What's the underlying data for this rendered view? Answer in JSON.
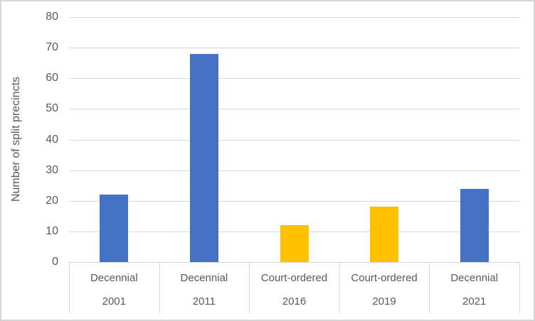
{
  "chart_data": {
    "type": "bar",
    "title": "",
    "xlabel": "",
    "ylabel": "Number of split precincts",
    "ylim": [
      0,
      80
    ],
    "ytick_step": 10,
    "yticks": [
      0,
      10,
      20,
      30,
      40,
      50,
      60,
      70,
      80
    ],
    "grid": "horizontal gridlines on, light gray",
    "legend": "none",
    "categories": [
      {
        "type_label": "Decennial",
        "year": "2001"
      },
      {
        "type_label": "Decennial",
        "year": "2011"
      },
      {
        "type_label": "Court-ordered",
        "year": "2016"
      },
      {
        "type_label": "Court-ordered",
        "year": "2019"
      },
      {
        "type_label": "Decennial",
        "year": "2021"
      }
    ],
    "values": [
      22,
      68,
      12,
      18,
      24
    ],
    "bar_colors": [
      "#4472C4",
      "#4472C4",
      "#FFC000",
      "#FFC000",
      "#4472C4"
    ]
  },
  "colors": {
    "decennial_blue": "#4472C4",
    "court_ordered_gold": "#FFC000",
    "gridline": "#D9D9D9",
    "axis_text": "#595959",
    "frame_border": "#D6D6D6"
  }
}
